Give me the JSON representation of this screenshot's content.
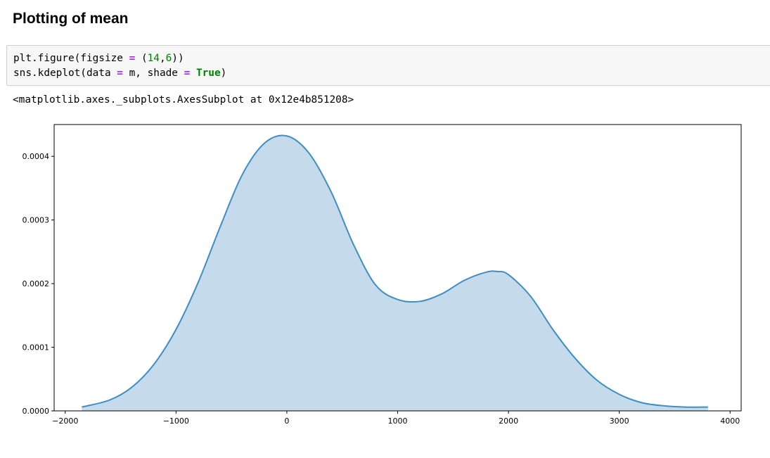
{
  "section": {
    "heading": "Plotting of mean"
  },
  "code_cell": {
    "lines": [
      [
        {
          "t": "plt.figure(figsize ",
          "c": ""
        },
        {
          "t": "=",
          "c": "op"
        },
        {
          "t": " (",
          "c": ""
        },
        {
          "t": "14",
          "c": "num"
        },
        {
          "t": ",",
          "c": ""
        },
        {
          "t": "6",
          "c": "num"
        },
        {
          "t": "))",
          "c": ""
        }
      ],
      [
        {
          "t": "sns.kdeplot(data ",
          "c": ""
        },
        {
          "t": "=",
          "c": "op"
        },
        {
          "t": " m, shade ",
          "c": ""
        },
        {
          "t": "=",
          "c": "op"
        },
        {
          "t": " ",
          "c": ""
        },
        {
          "t": "True",
          "c": "kw"
        },
        {
          "t": ")",
          "c": ""
        }
      ]
    ]
  },
  "output": {
    "text": "<matplotlib.axes._subplots.AxesSubplot at 0x12e4b851208>"
  },
  "colors": {
    "line": "#3e8ec4",
    "fill": "#c5dbec",
    "axes": "#000000"
  },
  "chart_data": {
    "type": "area",
    "title": "",
    "xlabel": "",
    "ylabel": "",
    "xlim": [
      -2100,
      4100
    ],
    "ylim": [
      0,
      0.00045
    ],
    "x_ticks": [
      -2000,
      -1000,
      0,
      1000,
      2000,
      3000,
      4000
    ],
    "x_tick_labels": [
      "−2000",
      "−1000",
      "0",
      "1000",
      "2000",
      "3000",
      "4000"
    ],
    "y_ticks": [
      0,
      0.0001,
      0.0002,
      0.0003,
      0.0004
    ],
    "y_tick_labels": [
      "0.0000",
      "0.0001",
      "0.0002",
      "0.0003",
      "0.0004"
    ],
    "grid": false,
    "shade": true,
    "series": [
      {
        "x": [
          -1850,
          -1600,
          -1400,
          -1200,
          -1000,
          -800,
          -600,
          -400,
          -200,
          0,
          200,
          400,
          600,
          800,
          1000,
          1200,
          1400,
          1600,
          1800,
          1900,
          2000,
          2200,
          2400,
          2600,
          2800,
          3000,
          3200,
          3400,
          3600,
          3800
        ],
        "y": [
          6e-06,
          1.7e-05,
          3.7e-05,
          7.3e-05,
          0.000128,
          0.000202,
          0.00029,
          0.000372,
          0.000421,
          0.000432,
          0.000405,
          0.000344,
          0.000262,
          0.000198,
          0.000175,
          0.000172,
          0.000184,
          0.000205,
          0.000218,
          0.000219,
          0.000214,
          0.00018,
          0.000128,
          8.3e-05,
          4.8e-05,
          2.6e-05,
          1.3e-05,
          8e-06,
          6e-06,
          6e-06
        ]
      }
    ]
  }
}
